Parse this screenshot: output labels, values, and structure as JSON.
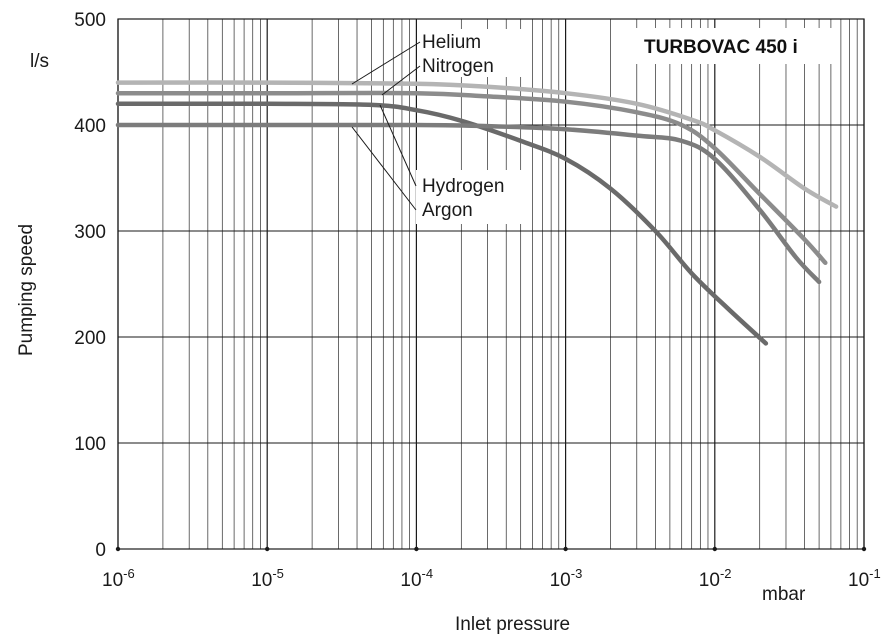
{
  "chart_data": {
    "type": "line",
    "title": "TURBOVAC 450 i",
    "xlabel": "Inlet pressure",
    "x_unit": "mbar",
    "ylabel": "Pumping speed",
    "y_unit": "l/s",
    "x_scale": "log",
    "xlim": [
      1e-06,
      0.1
    ],
    "ylim": [
      0,
      500
    ],
    "grid": true,
    "x_ticks": [
      {
        "base": "10",
        "exp": "-6",
        "value": 1e-06
      },
      {
        "base": "10",
        "exp": "-5",
        "value": 1e-05
      },
      {
        "base": "10",
        "exp": "-4",
        "value": 0.0001
      },
      {
        "base": "10",
        "exp": "-3",
        "value": 0.001
      },
      {
        "base": "10",
        "exp": "-2",
        "value": 0.01
      },
      {
        "base": "10",
        "exp": "-1",
        "value": 0.1
      }
    ],
    "y_ticks": [
      0,
      100,
      200,
      300,
      400,
      500
    ],
    "series": [
      {
        "name": "Helium",
        "color": "#b4b4b4",
        "points": [
          [
            1e-06,
            440
          ],
          [
            1e-05,
            440
          ],
          [
            0.0001,
            439
          ],
          [
            0.0003,
            436
          ],
          [
            0.001,
            430
          ],
          [
            0.003,
            420
          ],
          [
            0.007,
            405
          ],
          [
            0.01,
            395
          ],
          [
            0.02,
            370
          ],
          [
            0.04,
            340
          ],
          [
            0.065,
            323
          ]
        ]
      },
      {
        "name": "Nitrogen",
        "color": "#8c8c8c",
        "points": [
          [
            1e-06,
            430
          ],
          [
            1e-05,
            430
          ],
          [
            0.0001,
            430
          ],
          [
            0.0003,
            427
          ],
          [
            0.001,
            422
          ],
          [
            0.003,
            412
          ],
          [
            0.006,
            400
          ],
          [
            0.01,
            378
          ],
          [
            0.02,
            335
          ],
          [
            0.04,
            292
          ],
          [
            0.055,
            270
          ]
        ]
      },
      {
        "name": "Hydrogen",
        "color": "#6a6a6a",
        "points": [
          [
            1e-06,
            420
          ],
          [
            1e-05,
            420
          ],
          [
            5e-05,
            419
          ],
          [
            0.0001,
            414
          ],
          [
            0.0002,
            404
          ],
          [
            0.0005,
            385
          ],
          [
            0.001,
            368
          ],
          [
            0.002,
            340
          ],
          [
            0.004,
            300
          ],
          [
            0.007,
            260
          ],
          [
            0.012,
            228
          ],
          [
            0.022,
            194
          ]
        ]
      },
      {
        "name": "Argon",
        "color": "#7c7c7c",
        "points": [
          [
            1e-06,
            400
          ],
          [
            1e-05,
            400
          ],
          [
            0.0001,
            400
          ],
          [
            0.0003,
            399
          ],
          [
            0.001,
            396
          ],
          [
            0.003,
            390
          ],
          [
            0.006,
            385
          ],
          [
            0.01,
            368
          ],
          [
            0.02,
            320
          ],
          [
            0.035,
            275
          ],
          [
            0.05,
            252
          ]
        ]
      }
    ]
  }
}
